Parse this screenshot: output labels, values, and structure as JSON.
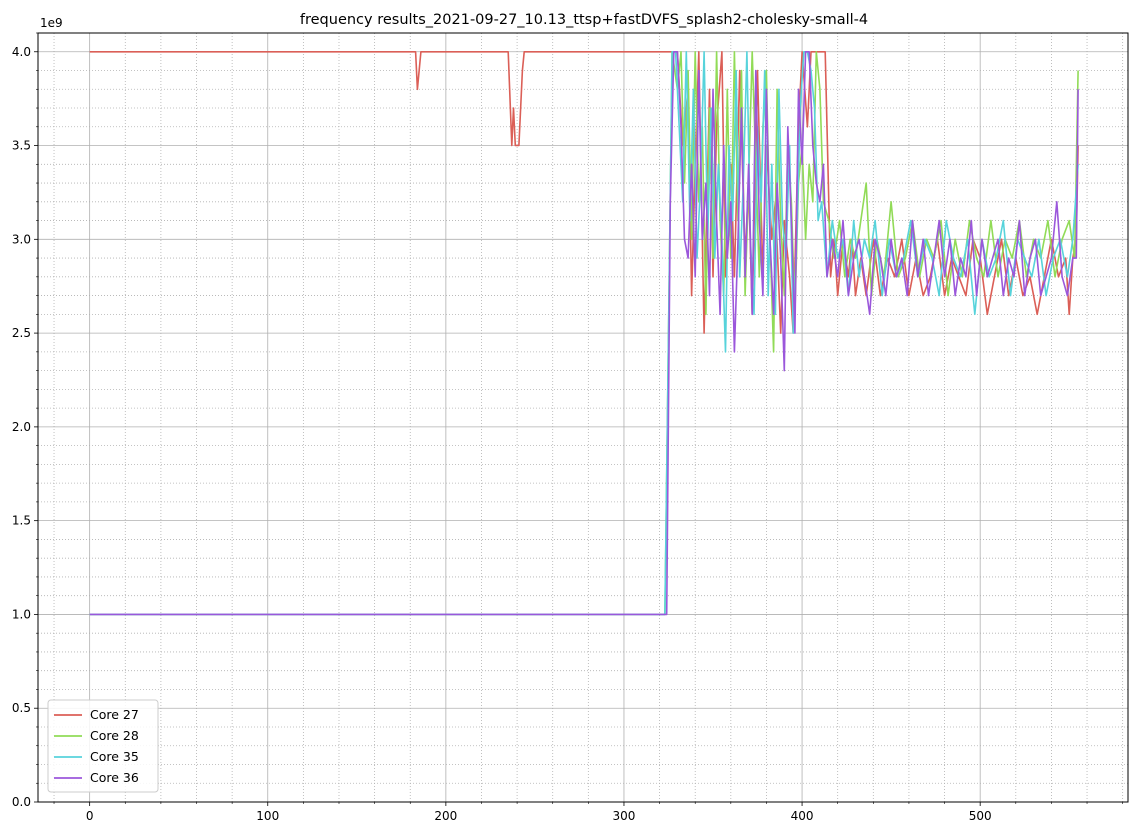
{
  "chart_data": {
    "type": "line",
    "title": "frequency results_2021-09-27_10.13_ttsp+fastDVFS_splash2-cholesky-small-4",
    "xlabel": "",
    "ylabel": "",
    "y_offset_text": "1e9",
    "xlim": [
      -29,
      583
    ],
    "ylim": [
      0,
      4.1
    ],
    "x_ticks": [
      0,
      100,
      200,
      300,
      400,
      500
    ],
    "x_tick_labels": [
      "0",
      "100",
      "200",
      "300",
      "400",
      "500"
    ],
    "y_ticks": [
      0,
      0.5,
      1.0,
      1.5,
      2.0,
      2.5,
      3.0,
      3.5,
      4.0
    ],
    "y_tick_labels": [
      "0.0",
      "0.5",
      "1.0",
      "1.5",
      "2.0",
      "2.5",
      "3.0",
      "3.5",
      "4.0"
    ],
    "x_minor_step": 20,
    "y_minor_step": 0.1,
    "grid": true,
    "legend_position": "lower-left",
    "series": [
      {
        "name": "Core 27",
        "color": "#db5f57",
        "x": [
          0,
          183,
          184,
          186,
          235,
          237,
          238,
          239,
          241,
          243,
          244,
          325,
          330,
          333,
          336,
          338,
          340,
          342,
          345,
          348,
          350,
          352,
          355,
          357,
          360,
          362,
          365,
          368,
          370,
          372,
          375,
          378,
          380,
          383,
          385,
          388,
          390,
          393,
          395,
          398,
          400,
          403,
          405,
          408,
          410,
          413,
          416,
          418,
          420,
          423,
          426,
          428,
          430,
          433,
          436,
          440,
          444,
          448,
          452,
          456,
          460,
          464,
          468,
          472,
          476,
          480,
          484,
          488,
          492,
          496,
          500,
          504,
          508,
          512,
          516,
          520,
          524,
          528,
          532,
          536,
          540,
          544,
          548,
          550,
          552,
          554,
          555
        ],
        "values": [
          4.0,
          4.0,
          3.8,
          4.0,
          4.0,
          3.5,
          3.7,
          3.5,
          3.5,
          3.9,
          4.0,
          4.0,
          4.0,
          3.5,
          3.8,
          2.7,
          3.4,
          4.0,
          2.5,
          3.8,
          2.8,
          3.6,
          4.0,
          2.8,
          3.4,
          2.8,
          3.9,
          2.9,
          3.3,
          2.6,
          3.9,
          2.8,
          3.5,
          3.0,
          3.2,
          2.5,
          3.1,
          2.8,
          2.5,
          3.6,
          4.0,
          3.6,
          4.0,
          4.0,
          4.0,
          4.0,
          2.8,
          3.0,
          2.7,
          3.0,
          2.8,
          3.0,
          2.7,
          2.9,
          2.7,
          3.0,
          2.7,
          2.9,
          2.8,
          3.0,
          2.7,
          2.9,
          2.7,
          2.8,
          3.0,
          2.7,
          2.9,
          2.8,
          2.7,
          3.0,
          2.9,
          2.6,
          2.8,
          3.0,
          2.7,
          2.9,
          2.7,
          2.8,
          2.6,
          2.8,
          3.0,
          2.8,
          2.9,
          2.6,
          2.9,
          3.0,
          3.5
        ]
      },
      {
        "name": "Core 28",
        "color": "#91db57",
        "x": [
          0,
          323,
          327,
          330,
          332,
          334,
          336,
          338,
          340,
          342,
          344,
          346,
          348,
          350,
          352,
          354,
          356,
          358,
          360,
          362,
          364,
          366,
          368,
          370,
          372,
          374,
          376,
          378,
          380,
          382,
          384,
          386,
          388,
          390,
          392,
          394,
          396,
          398,
          400,
          402,
          404,
          406,
          408,
          410,
          412,
          415,
          418,
          421,
          424,
          427,
          430,
          433,
          436,
          439,
          442,
          446,
          450,
          454,
          458,
          462,
          466,
          470,
          474,
          478,
          482,
          486,
          490,
          494,
          498,
          502,
          506,
          510,
          514,
          518,
          522,
          526,
          530,
          534,
          538,
          542,
          546,
          550,
          553,
          555
        ],
        "values": [
          1.0,
          1.0,
          4.0,
          3.8,
          4.0,
          3.3,
          3.9,
          3.0,
          4.0,
          3.2,
          3.6,
          2.6,
          3.7,
          2.9,
          4.0,
          3.1,
          2.7,
          3.8,
          2.9,
          4.0,
          3.1,
          3.9,
          2.7,
          3.3,
          4.0,
          3.4,
          2.8,
          3.6,
          3.9,
          3.0,
          2.4,
          3.8,
          3.1,
          2.7,
          3.5,
          3.2,
          2.6,
          3.3,
          3.5,
          3.0,
          3.4,
          3.2,
          4.0,
          3.8,
          3.2,
          3.1,
          2.9,
          3.1,
          2.8,
          3.0,
          2.9,
          3.1,
          3.3,
          2.7,
          3.0,
          2.8,
          3.2,
          2.8,
          2.9,
          3.1,
          2.8,
          3.0,
          2.9,
          3.1,
          2.7,
          3.0,
          2.8,
          3.1,
          2.9,
          2.8,
          3.1,
          2.8,
          3.0,
          2.9,
          3.1,
          2.8,
          3.0,
          2.9,
          3.1,
          2.8,
          3.0,
          3.1,
          2.9,
          3.9
        ]
      },
      {
        "name": "Core 35",
        "color": "#57d3db",
        "x": [
          0,
          323,
          327,
          329,
          331,
          333,
          335,
          337,
          339,
          341,
          343,
          345,
          347,
          349,
          351,
          353,
          355,
          357,
          359,
          361,
          363,
          365,
          367,
          369,
          371,
          373,
          375,
          377,
          379,
          381,
          383,
          385,
          387,
          389,
          391,
          393,
          395,
          397,
          399,
          401,
          403,
          405,
          407,
          409,
          411,
          414,
          417,
          420,
          423,
          426,
          429,
          432,
          435,
          438,
          441,
          445,
          449,
          453,
          457,
          461,
          465,
          469,
          473,
          477,
          481,
          485,
          489,
          493,
          497,
          501,
          505,
          509,
          513,
          517,
          521,
          525,
          529,
          533,
          537,
          541,
          545,
          549,
          552,
          555
        ],
        "values": [
          1.0,
          1.0,
          4.0,
          4.0,
          3.6,
          3.2,
          4.0,
          3.1,
          3.8,
          2.9,
          3.3,
          4.0,
          3.0,
          3.7,
          2.9,
          3.4,
          3.0,
          2.4,
          3.5,
          3.1,
          3.9,
          2.8,
          3.3,
          4.0,
          3.0,
          2.6,
          3.6,
          3.2,
          3.9,
          2.7,
          3.4,
          2.6,
          3.8,
          3.1,
          2.9,
          3.5,
          2.5,
          3.0,
          3.7,
          4.0,
          4.0,
          3.9,
          3.7,
          3.1,
          3.2,
          2.8,
          3.1,
          2.9,
          3.0,
          2.7,
          3.1,
          2.8,
          3.0,
          2.9,
          3.1,
          2.7,
          3.0,
          2.8,
          2.9,
          3.1,
          2.8,
          3.0,
          2.9,
          2.7,
          3.1,
          2.9,
          2.8,
          3.0,
          2.6,
          3.0,
          2.8,
          2.9,
          3.1,
          2.7,
          3.0,
          2.9,
          2.8,
          3.0,
          2.7,
          2.9,
          3.0,
          2.8,
          3.0,
          3.4
        ]
      },
      {
        "name": "Core 36",
        "color": "#9b57db",
        "x": [
          0,
          324,
          326,
          328,
          330,
          332,
          334,
          336,
          338,
          340,
          342,
          344,
          346,
          348,
          350,
          352,
          354,
          356,
          358,
          360,
          362,
          364,
          366,
          368,
          370,
          372,
          374,
          376,
          378,
          380,
          382,
          384,
          386,
          388,
          390,
          392,
          394,
          396,
          398,
          400,
          402,
          404,
          406,
          408,
          410,
          412,
          414,
          417,
          420,
          423,
          426,
          429,
          432,
          435,
          438,
          441,
          444,
          447,
          450,
          453,
          456,
          459,
          462,
          465,
          468,
          471,
          474,
          477,
          480,
          483,
          486,
          489,
          492,
          495,
          498,
          501,
          504,
          507,
          510,
          513,
          516,
          519,
          522,
          525,
          528,
          531,
          534,
          537,
          540,
          543,
          546,
          549,
          552,
          554,
          555
        ],
        "values": [
          1.0,
          1.0,
          3.2,
          4.0,
          4.0,
          3.6,
          3.0,
          2.9,
          3.4,
          2.8,
          3.9,
          3.0,
          3.3,
          2.7,
          3.8,
          3.1,
          2.6,
          3.5,
          2.9,
          3.2,
          2.4,
          3.0,
          3.7,
          2.8,
          3.4,
          2.6,
          3.9,
          3.1,
          2.7,
          3.8,
          3.0,
          2.6,
          3.3,
          2.9,
          2.3,
          3.6,
          3.1,
          2.5,
          3.8,
          3.4,
          4.0,
          4.0,
          3.5,
          3.3,
          3.2,
          3.4,
          2.8,
          3.0,
          2.8,
          3.1,
          2.7,
          2.9,
          3.0,
          2.8,
          2.6,
          3.0,
          2.9,
          2.7,
          3.0,
          2.8,
          2.9,
          2.7,
          3.1,
          2.8,
          3.0,
          2.7,
          2.9,
          3.1,
          2.8,
          3.0,
          2.7,
          2.9,
          2.8,
          3.1,
          2.7,
          3.0,
          2.8,
          2.9,
          3.0,
          2.7,
          2.9,
          2.8,
          3.1,
          2.7,
          2.9,
          3.0,
          2.7,
          2.8,
          2.9,
          3.2,
          2.8,
          2.7,
          2.9,
          2.9,
          3.8
        ]
      }
    ]
  }
}
